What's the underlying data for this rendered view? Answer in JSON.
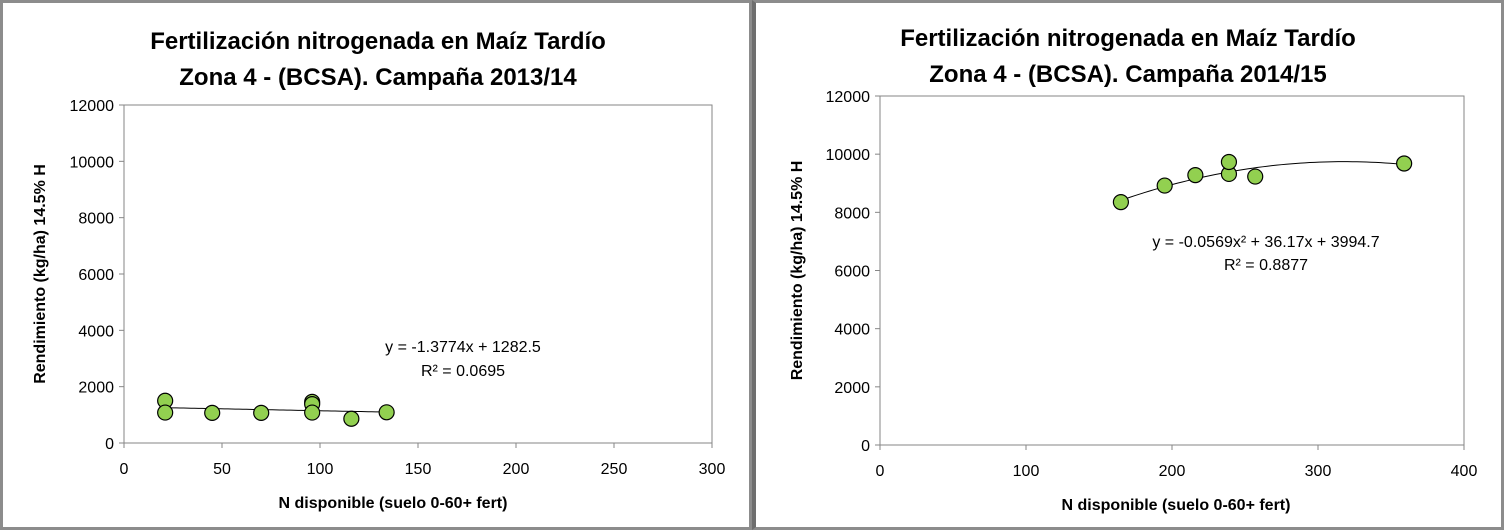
{
  "chart_data": [
    {
      "type": "scatter",
      "title": [
        "Fertilización nitrogenada en Maíz Tardío",
        "Zona 4 - (BCSA). Campaña 2013/14"
      ],
      "xlabel": "N disponible (suelo 0-60+ fert)",
      "ylabel": "Rendimiento (kg/ha) 14.5% H",
      "xlim": [
        0,
        300
      ],
      "ylim": [
        0,
        12000
      ],
      "xticks": [
        0,
        50,
        100,
        150,
        200,
        250,
        300
      ],
      "yticks": [
        0,
        2000,
        4000,
        6000,
        8000,
        10000,
        12000
      ],
      "xtick_labels": [
        "0",
        "50",
        "100",
        "150",
        "200",
        "250",
        "300"
      ],
      "ytick_labels": [
        "0",
        "2000",
        "4000",
        "6000",
        "8000",
        "10000",
        "12000"
      ],
      "grid": false,
      "marker_color": "#92d050",
      "marker_edge": "#000000",
      "points": [
        {
          "x": 21,
          "y": 1500
        },
        {
          "x": 21,
          "y": 1080
        },
        {
          "x": 45,
          "y": 1070
        },
        {
          "x": 70,
          "y": 1070
        },
        {
          "x": 96,
          "y": 1460
        },
        {
          "x": 96,
          "y": 1380
        },
        {
          "x": 96,
          "y": 1080
        },
        {
          "x": 116,
          "y": 860
        },
        {
          "x": 134,
          "y": 1090
        }
      ],
      "trendline": {
        "kind": "linear",
        "coef": [
          -1.3774,
          1282.5
        ],
        "x_range": [
          21,
          134
        ]
      },
      "equation": "y = -1.3774x + 1282.5",
      "r2": "R² = 0.0695"
    },
    {
      "type": "scatter",
      "title": [
        "Fertilización nitrogenada en Maíz Tardío",
        "Zona 4 - (BCSA). Campaña 2014/15"
      ],
      "xlabel": "N disponible (suelo 0-60+ fert)",
      "ylabel": "Rendimiento (kg/ha) 14.5% H",
      "xlim": [
        0,
        400
      ],
      "ylim": [
        0,
        12000
      ],
      "xticks": [
        0,
        100,
        200,
        300,
        400
      ],
      "yticks": [
        0,
        2000,
        4000,
        6000,
        8000,
        10000,
        12000
      ],
      "xtick_labels": [
        "0",
        "100",
        "200",
        "300",
        "400"
      ],
      "ytick_labels": [
        "0",
        "2000",
        "4000",
        "6000",
        "8000",
        "10000",
        "12000"
      ],
      "grid": false,
      "marker_color": "#92d050",
      "marker_edge": "#000000",
      "points": [
        {
          "x": 165,
          "y": 8350
        },
        {
          "x": 195,
          "y": 8920
        },
        {
          "x": 216,
          "y": 9280
        },
        {
          "x": 239,
          "y": 9320
        },
        {
          "x": 239,
          "y": 9730
        },
        {
          "x": 257,
          "y": 9230
        },
        {
          "x": 359,
          "y": 9680
        }
      ],
      "trendline": {
        "kind": "quadratic",
        "coef": [
          -0.0569,
          36.17,
          3994.7
        ],
        "x_range": [
          165,
          359
        ]
      },
      "equation": "y = -0.0569x² + 36.17x + 3994.7",
      "r2": "R² = 0.8877"
    }
  ]
}
